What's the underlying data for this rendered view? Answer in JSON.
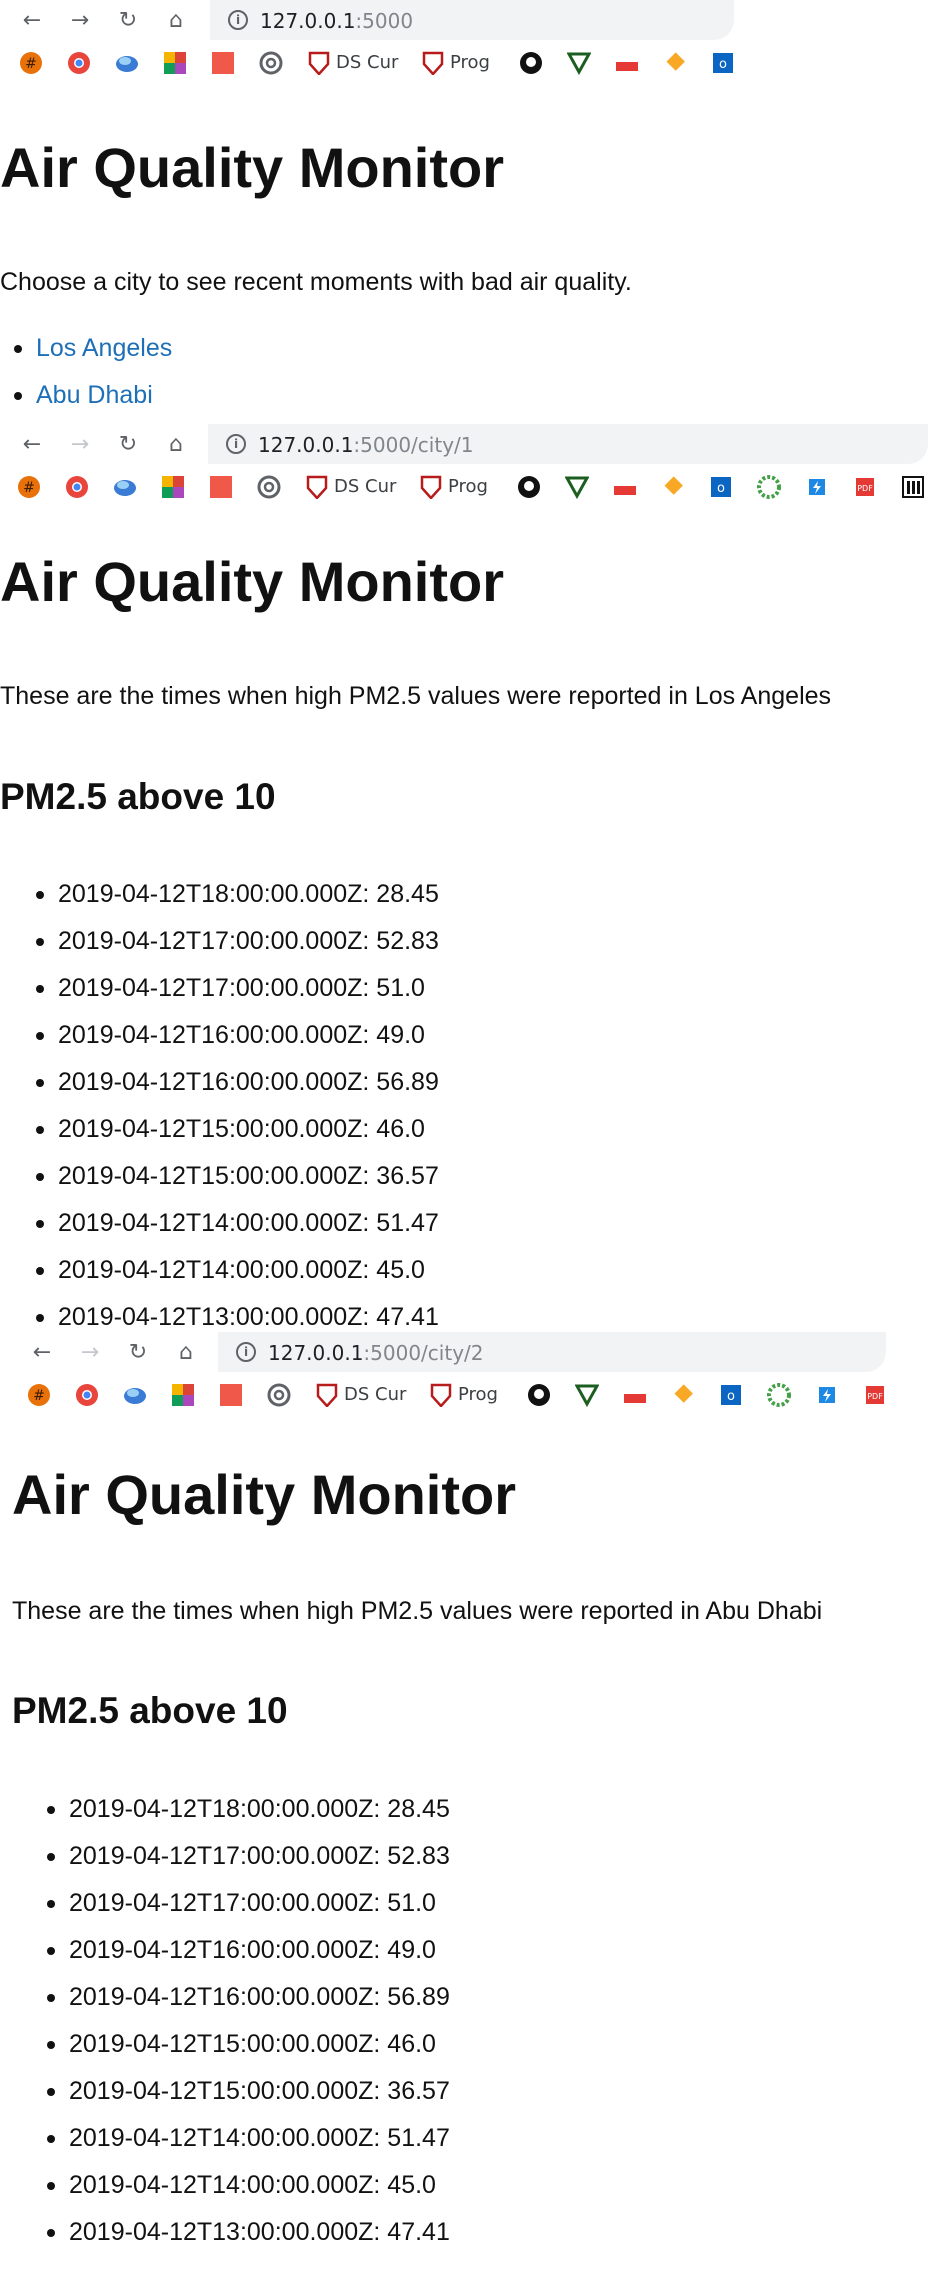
{
  "browser": {
    "screens": [
      {
        "host": "127.0.0.1",
        "path": ":5000"
      },
      {
        "host": "127.0.0.1",
        "path": ":5000/city/1"
      },
      {
        "host": "127.0.0.1",
        "path": ":5000/city/2"
      }
    ],
    "bookmarks": {
      "ds_label": "DS Cur",
      "prog_label": "Prog"
    }
  },
  "home": {
    "title": "Air Quality Monitor",
    "intro": "Choose a city to see recent moments with bad air quality.",
    "cities": [
      "Los Angeles",
      "Abu Dhabi"
    ]
  },
  "city_la": {
    "title": "Air Quality Monitor",
    "intro": "These are the times when high PM2.5 values were reported in Los Angeles",
    "heading": "PM2.5 above 10",
    "readings": [
      "2019-04-12T18:00:00.000Z: 28.45",
      "2019-04-12T17:00:00.000Z: 52.83",
      "2019-04-12T17:00:00.000Z: 51.0",
      "2019-04-12T16:00:00.000Z: 49.0",
      "2019-04-12T16:00:00.000Z: 56.89",
      "2019-04-12T15:00:00.000Z: 46.0",
      "2019-04-12T15:00:00.000Z: 36.57",
      "2019-04-12T14:00:00.000Z: 51.47",
      "2019-04-12T14:00:00.000Z: 45.0",
      "2019-04-12T13:00:00.000Z: 47.41"
    ]
  },
  "city_ad": {
    "title": "Air Quality Monitor",
    "intro": "These are the times when high PM2.5 values were reported in Abu Dhabi",
    "heading": "PM2.5 above 10",
    "readings": [
      "2019-04-12T18:00:00.000Z: 28.45",
      "2019-04-12T17:00:00.000Z: 52.83",
      "2019-04-12T17:00:00.000Z: 51.0",
      "2019-04-12T16:00:00.000Z: 49.0",
      "2019-04-12T16:00:00.000Z: 56.89",
      "2019-04-12T15:00:00.000Z: 46.0",
      "2019-04-12T15:00:00.000Z: 36.57",
      "2019-04-12T14:00:00.000Z: 51.47",
      "2019-04-12T14:00:00.000Z: 45.0",
      "2019-04-12T13:00:00.000Z: 47.41"
    ]
  }
}
